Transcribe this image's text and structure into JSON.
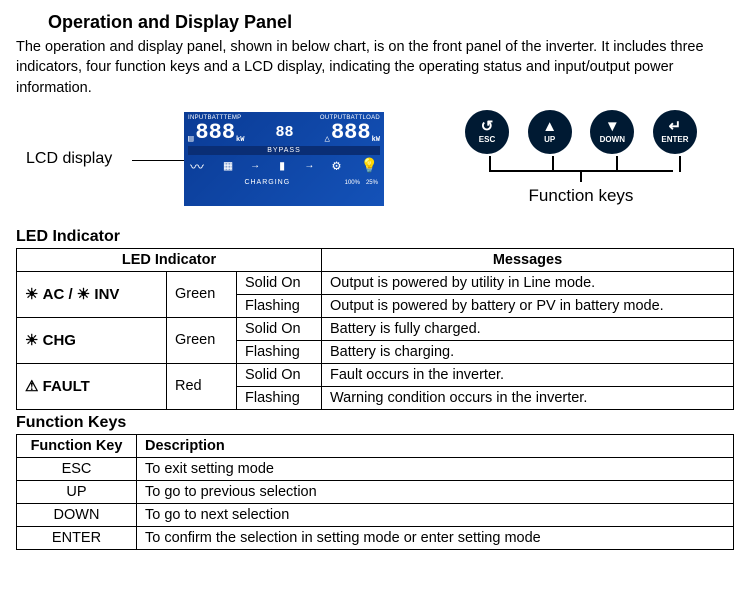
{
  "title": "Operation and Display Panel",
  "intro": "The operation and display panel, shown in below chart, is on the front panel of the inverter. It includes three indicators, four function keys and a LCD display, indicating the operating status and input/output power information.",
  "lcd": {
    "label": "LCD display",
    "top_left": "INPUTBATTTEMP",
    "top_right": "OUTPUTBATTLOAD",
    "seg_left": "888",
    "seg_mid": "88",
    "seg_right": "888",
    "seg_unit_left": "kW",
    "seg_unit_right": "kW",
    "bypass": "BYPASS",
    "bottom_left_pct": "100%",
    "bottom_right_pct": "25%",
    "svg": {
      "background_top": "#0a3b95",
      "background_bottom": "#1452b8",
      "text_color": "#ffffff"
    }
  },
  "function_keys": {
    "label": "Function keys",
    "buttons": [
      {
        "symbol": "↺",
        "text": "ESC"
      },
      {
        "symbol": "▲",
        "text": "UP"
      },
      {
        "symbol": "▼",
        "text": "DOWN"
      },
      {
        "symbol": "↵",
        "text": "ENTER"
      }
    ],
    "circle_color": "#001a33",
    "circle_text_color": "#ffffff"
  },
  "led_section": {
    "heading": "LED Indicator",
    "header_led": "LED Indicator",
    "header_msg": "Messages",
    "rows": [
      {
        "name": "AC /     INV",
        "icon": "sun-double",
        "color": "Green",
        "states": [
          {
            "mode": "Solid On",
            "msg": "Output is powered by utility in Line mode."
          },
          {
            "mode": "Flashing",
            "msg": "Output is powered by battery or PV in battery mode."
          }
        ]
      },
      {
        "name": "CHG",
        "icon": "sun",
        "color": "Green",
        "states": [
          {
            "mode": "Solid On",
            "msg": "Battery is fully charged."
          },
          {
            "mode": "Flashing",
            "msg": "Battery is charging."
          }
        ]
      },
      {
        "name": "FAULT",
        "icon": "triangle",
        "color": "Red",
        "states": [
          {
            "mode": "Solid On",
            "msg": "Fault occurs in the inverter."
          },
          {
            "mode": "Flashing",
            "msg": "Warning condition occurs in the inverter."
          }
        ]
      }
    ]
  },
  "fnkeys_section": {
    "heading": "Function Keys",
    "header_key": "Function Key",
    "header_desc": "Description",
    "rows": [
      {
        "key": "ESC",
        "desc": "To exit setting mode"
      },
      {
        "key": "UP",
        "desc": "To go to previous selection"
      },
      {
        "key": "DOWN",
        "desc": "To go to next selection"
      },
      {
        "key": "ENTER",
        "desc": "To confirm the selection in setting mode or enter setting mode"
      }
    ]
  },
  "colors": {
    "text": "#000000",
    "background": "#ffffff",
    "border": "#000000"
  }
}
